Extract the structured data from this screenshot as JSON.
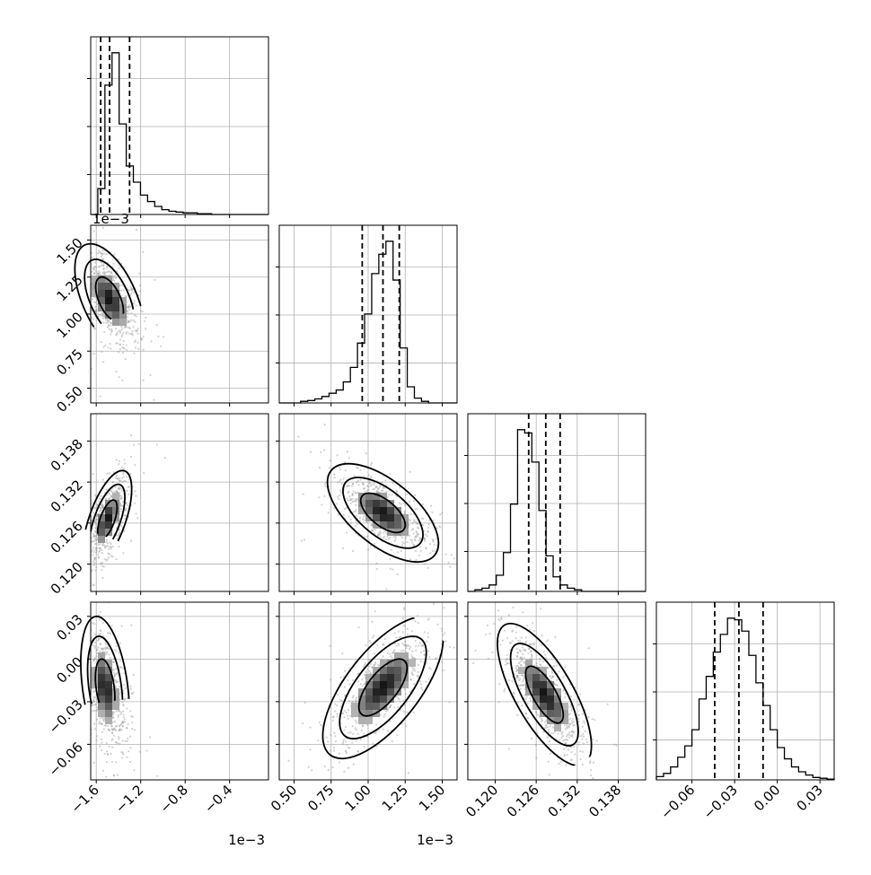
{
  "colors": {
    "line": "#000000",
    "grid": "#b0b0b0",
    "scatter": "#9a9a9a",
    "frame": "#000000"
  },
  "chart_data": {
    "type": "corner",
    "grid": true,
    "quantiles_style": "dashed vertical lines",
    "parameters": [
      {
        "id": "p0",
        "range": [
          -1.65,
          -0.05
        ],
        "ticks": [
          -1.6,
          -1.2,
          -0.8,
          -0.4
        ],
        "tick_labels": [
          "−1.6",
          "−1.2",
          "−0.8",
          "−0.4"
        ],
        "offset_label": "1e−3",
        "quantiles": [
          -1.56,
          -1.48,
          -1.3
        ]
      },
      {
        "id": "p1",
        "range": [
          0.4,
          1.6
        ],
        "ticks": [
          0.5,
          0.75,
          1.0,
          1.25,
          1.5
        ],
        "tick_labels": [
          "0.50",
          "0.75",
          "1.00",
          "1.25",
          "1.50"
        ],
        "offset_label": "1e−3",
        "quantiles": [
          0.96,
          1.1,
          1.21
        ]
      },
      {
        "id": "p2",
        "range": [
          0.116,
          0.142
        ],
        "ticks": [
          0.12,
          0.126,
          0.132,
          0.138
        ],
        "tick_labels": [
          "0.120",
          "0.126",
          "0.132",
          "0.138"
        ],
        "offset_label": "",
        "quantiles": [
          0.1249,
          0.1274,
          0.1295
        ]
      },
      {
        "id": "p3",
        "range": [
          -0.085,
          0.04
        ],
        "ticks": [
          -0.06,
          -0.03,
          0.0,
          0.03
        ],
        "tick_labels": [
          "−0.06",
          "−0.03",
          "0.00",
          "0.03"
        ],
        "offset_label": "",
        "quantiles": [
          -0.044,
          -0.027,
          -0.01
        ]
      }
    ],
    "row_offset_labels": [
      "1e−3",
      "1e−3",
      "",
      ""
    ],
    "histograms": [
      {
        "param": "p0",
        "counts": [
          0,
          16,
          80,
          100,
          56,
          30,
          20,
          12,
          8,
          5,
          3,
          2,
          1.5,
          1,
          1,
          0.5,
          0.5,
          0,
          0,
          0,
          0,
          0,
          0,
          0,
          0
        ]
      },
      {
        "param": "p1",
        "counts": [
          0,
          0,
          0,
          1,
          1.5,
          2.5,
          4,
          6,
          8,
          13,
          22,
          37,
          55,
          80,
          92,
          100,
          76,
          34,
          10,
          3,
          1,
          0,
          0,
          0,
          0
        ]
      },
      {
        "param": "p2",
        "counts": [
          0,
          1,
          2,
          4,
          10,
          24,
          54,
          100,
          98,
          80,
          50,
          22,
          9,
          4,
          2,
          1,
          0,
          0,
          0,
          0,
          0,
          0,
          0,
          0,
          0
        ]
      },
      {
        "param": "p3",
        "counts": [
          2,
          4,
          8,
          14,
          21,
          31,
          50,
          64,
          79,
          90,
          100,
          99,
          92,
          77,
          60,
          46,
          31,
          20,
          13,
          8,
          5,
          3,
          1.5,
          1,
          0.5
        ]
      }
    ],
    "pairs": [
      {
        "x": "p0",
        "y": "p1",
        "mean": [
          -1.48,
          1.1
        ],
        "sd": [
          0.1,
          0.12
        ],
        "corr": -0.55,
        "contour_levels": [
          1.0,
          1.8,
          2.5
        ]
      },
      {
        "x": "p0",
        "y": "p2",
        "mean": [
          -1.5,
          0.1265
        ],
        "sd": [
          0.07,
          0.0023
        ],
        "corr": 0.62,
        "contour_levels": [
          1.0,
          1.8,
          2.5
        ]
      },
      {
        "x": "p1",
        "y": "p2",
        "mean": [
          1.1,
          0.1275
        ],
        "sd": [
          0.12,
          0.0023
        ],
        "corr": -0.62,
        "contour_levels": [
          1.0,
          1.8,
          2.5
        ]
      },
      {
        "x": "p0",
        "y": "p3",
        "mean": [
          -1.52,
          -0.02
        ],
        "sd": [
          0.07,
          0.016
        ],
        "corr": -0.35,
        "contour_levels": [
          1.0,
          1.8,
          2.5
        ]
      },
      {
        "x": "p1",
        "y": "p3",
        "mean": [
          1.1,
          -0.02
        ],
        "sd": [
          0.13,
          0.016
        ],
        "corr": 0.68,
        "contour_levels": [
          1.0,
          1.8,
          2.5
        ]
      },
      {
        "x": "p2",
        "y": "p3",
        "mean": [
          0.1272,
          -0.025
        ],
        "sd": [
          0.0022,
          0.016
        ],
        "corr": -0.72,
        "contour_levels": [
          1.0,
          1.8,
          2.5
        ]
      }
    ]
  }
}
